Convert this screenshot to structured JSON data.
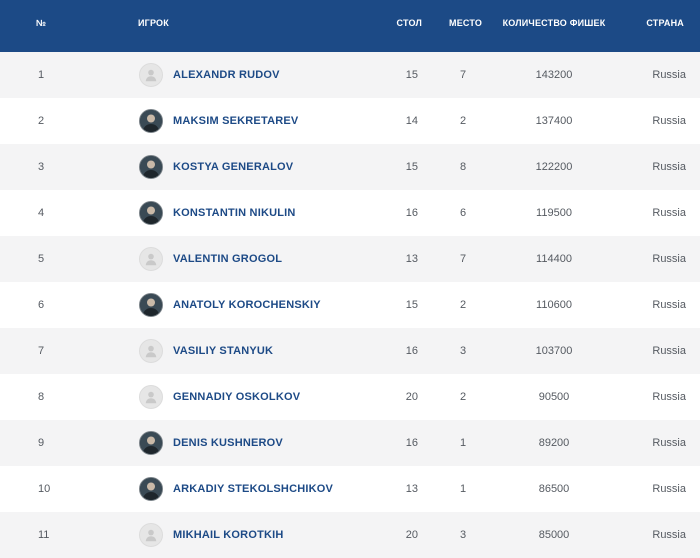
{
  "headers": {
    "rank": "№",
    "player": "Игрок",
    "table": "Стол",
    "seat": "Место",
    "chips": "Количество фишек",
    "country": "Страна"
  },
  "colors": {
    "header_bg": "#1c4a86",
    "row_alt_bg": "#f4f4f5",
    "name_color": "#1d4a86"
  },
  "rows": [
    {
      "rank": "1",
      "name": "ALEXANDR RUDOV",
      "table": "15",
      "seat": "7",
      "chips": "143200",
      "country": "Russia",
      "avatar": "placeholder-avatar-icon"
    },
    {
      "rank": "2",
      "name": "MAKSIM SEKRETAREV",
      "table": "14",
      "seat": "2",
      "chips": "137400",
      "country": "Russia",
      "avatar": "photo"
    },
    {
      "rank": "3",
      "name": "KOSTYA GENERALOV",
      "table": "15",
      "seat": "8",
      "chips": "122200",
      "country": "Russia",
      "avatar": "photo"
    },
    {
      "rank": "4",
      "name": "KONSTANTIN NIKULIN",
      "table": "16",
      "seat": "6",
      "chips": "119500",
      "country": "Russia",
      "avatar": "photo"
    },
    {
      "rank": "5",
      "name": "VALENTIN GROGOL",
      "table": "13",
      "seat": "7",
      "chips": "114400",
      "country": "Russia",
      "avatar": "placeholder-avatar-icon"
    },
    {
      "rank": "6",
      "name": "ANATOLY KOROCHENSKIY",
      "table": "15",
      "seat": "2",
      "chips": "110600",
      "country": "Russia",
      "avatar": "photo"
    },
    {
      "rank": "7",
      "name": "VASILIY STANYUK",
      "table": "16",
      "seat": "3",
      "chips": "103700",
      "country": "Russia",
      "avatar": "placeholder-avatar-icon"
    },
    {
      "rank": "8",
      "name": "GENNADIY OSKOLKOV",
      "table": "20",
      "seat": "2",
      "chips": "90500",
      "country": "Russia",
      "avatar": "placeholder-avatar-icon"
    },
    {
      "rank": "9",
      "name": "DENIS KUSHNEROV",
      "table": "16",
      "seat": "1",
      "chips": "89200",
      "country": "Russia",
      "avatar": "photo"
    },
    {
      "rank": "10",
      "name": "ARKADIY STEKOLSHCHIKOV",
      "table": "13",
      "seat": "1",
      "chips": "86500",
      "country": "Russia",
      "avatar": "photo"
    },
    {
      "rank": "11",
      "name": "MIKHAIL KOROTKIH",
      "table": "20",
      "seat": "3",
      "chips": "85000",
      "country": "Russia",
      "avatar": "placeholder-avatar-icon"
    }
  ]
}
